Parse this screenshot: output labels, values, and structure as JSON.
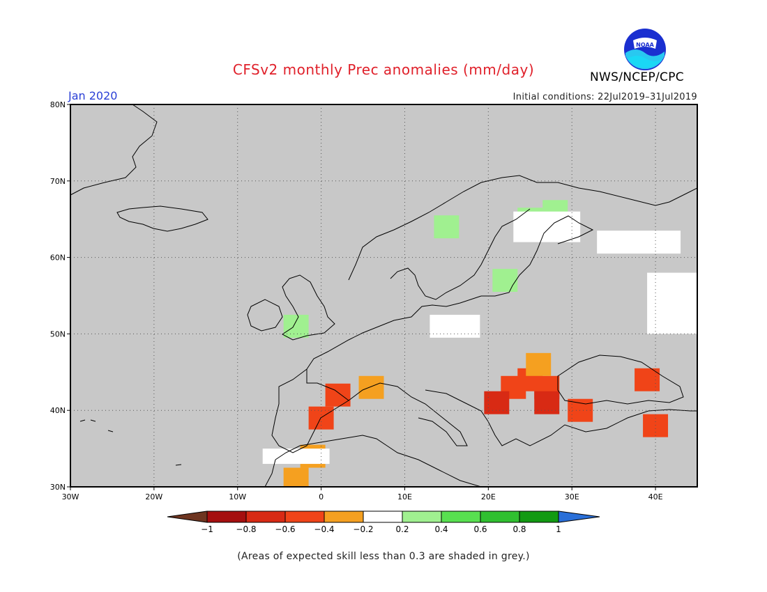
{
  "title": "CFSv2 monthly Prec anomalies (mm/day)",
  "month": "Jan 2020",
  "initial_conditions": "Initial conditions: 22Jul2019–31Jul2019",
  "agency": "NWS/NCEP/CPC",
  "logo_icon": "noaa-logo-icon",
  "note": "(Areas of expected skill less than 0.3 are shaded in grey.)",
  "map": {
    "lon_range": [
      -30,
      45
    ],
    "lat_range": [
      30,
      80
    ],
    "lon_labels": [
      "30W",
      "20W",
      "10W",
      "0",
      "10E",
      "20E",
      "30E",
      "40E"
    ],
    "lat_labels": [
      "30N",
      "40N",
      "50N",
      "60N",
      "70N",
      "80N"
    ],
    "background_color": "#c8c8c8",
    "coastline_color": "#000000"
  },
  "colorbar": {
    "labels": [
      "−1",
      "−0.8",
      "−0.6",
      "−0.4",
      "−0.2",
      "0.2",
      "0.4",
      "0.6",
      "0.8",
      "1"
    ],
    "colors": [
      "#6e3520",
      "#a50f0f",
      "#d82a14",
      "#f04418",
      "#f5a020",
      "#ffffff",
      "#a0f090",
      "#58e050",
      "#30c030",
      "#129a12",
      "#2a6fd8"
    ]
  },
  "chart_data": {
    "type": "heatmap",
    "description_units": "mm/day",
    "cells": [
      {
        "lon": 25,
        "lat": 44,
        "value": -0.5
      },
      {
        "lon": 23,
        "lat": 43,
        "value": -0.6
      },
      {
        "lon": 27,
        "lat": 43,
        "value": -0.6
      },
      {
        "lon": 21,
        "lat": 41,
        "value": -0.8
      },
      {
        "lon": 27,
        "lat": 41,
        "value": -0.7
      },
      {
        "lon": 31,
        "lat": 40,
        "value": -0.6
      },
      {
        "lon": 26,
        "lat": 46,
        "value": -0.3
      },
      {
        "lon": 40,
        "lat": 38,
        "value": -0.6
      },
      {
        "lon": 39,
        "lat": 44,
        "value": -0.5
      },
      {
        "lon": 0,
        "lat": 39,
        "value": -0.5
      },
      {
        "lon": -1,
        "lat": 34,
        "value": -0.3
      },
      {
        "lon": -3,
        "lat": 31,
        "value": -0.3
      },
      {
        "lon": 6,
        "lat": 43,
        "value": -0.3
      },
      {
        "lon": 2,
        "lat": 42,
        "value": -0.5
      },
      {
        "lon": 25,
        "lat": 65,
        "value": 0.3
      },
      {
        "lon": -3,
        "lat": 51,
        "value": 0.3
      },
      {
        "lon": 15,
        "lat": 64,
        "value": 0.3
      },
      {
        "lon": 22,
        "lat": 57,
        "value": 0.3
      },
      {
        "lon": 28,
        "lat": 66,
        "value": 0.3
      }
    ]
  }
}
